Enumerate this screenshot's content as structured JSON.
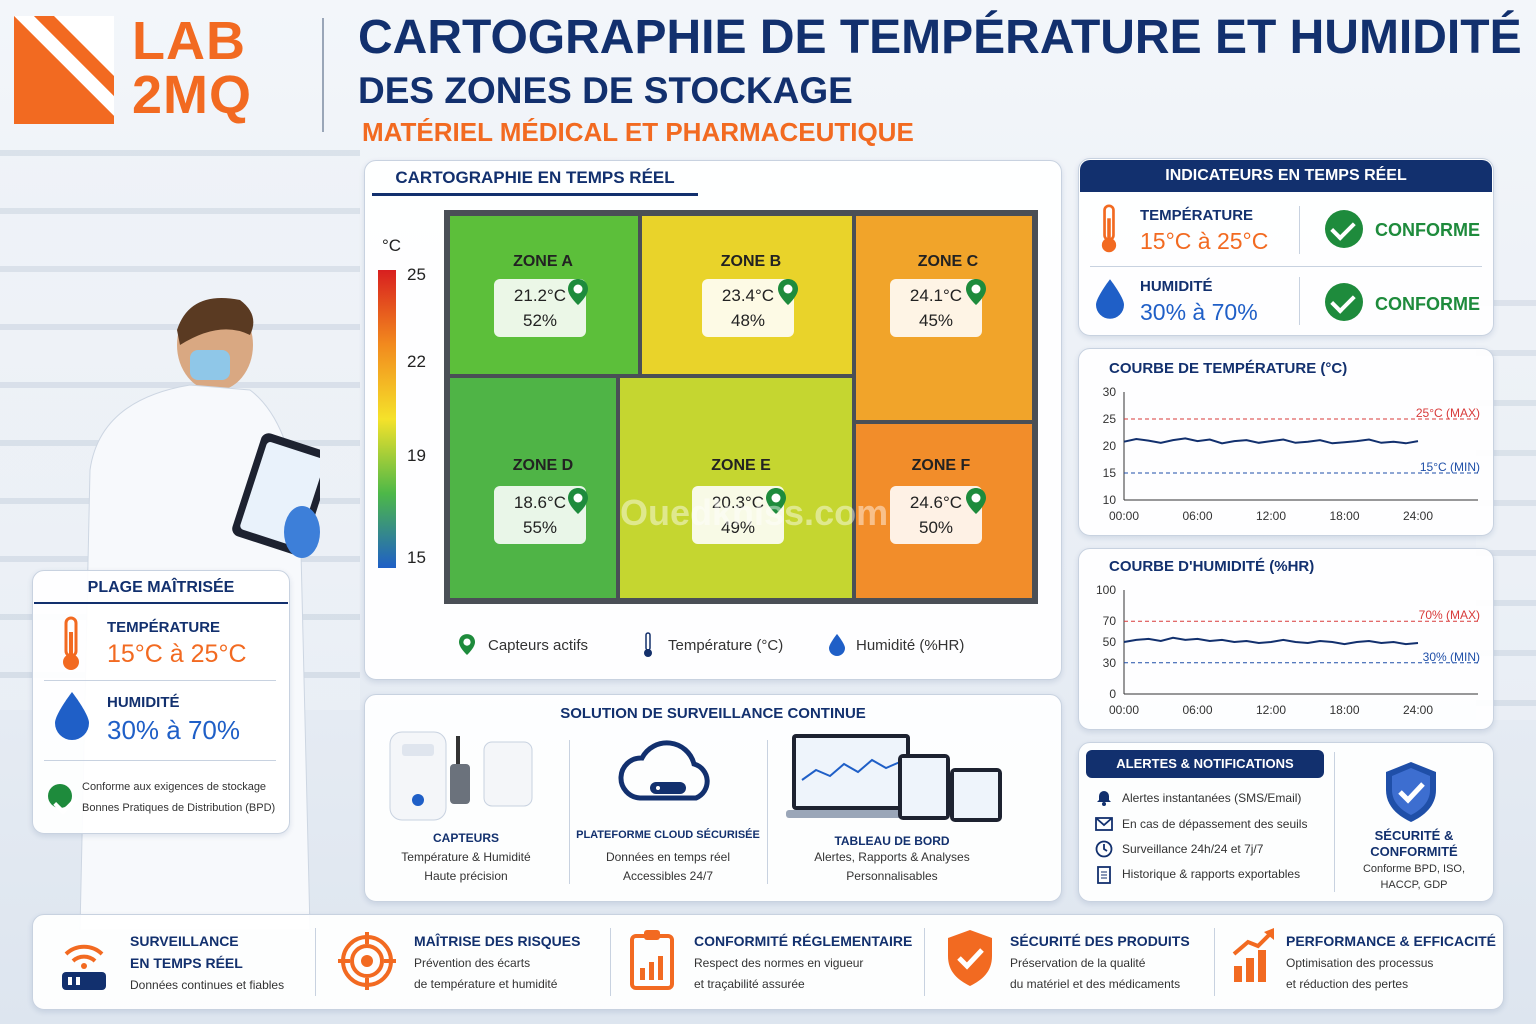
{
  "brand": {
    "logo_text_line1": "LAB",
    "logo_text_line2": "2MQ",
    "color": "#f26a21"
  },
  "header": {
    "title": "CARTOGRAPHIE DE TEMPÉRATURE ET HUMIDITÉ",
    "subtitle": "DES ZONES DE STOCKAGE",
    "tagline": "MATÉRIEL MÉDICAL ET PHARMACEUTIQUE"
  },
  "map_panel": {
    "title": "CARTOGRAPHIE EN TEMPS RÉEL",
    "scale_unit": "°C",
    "scale_ticks": [
      "25",
      "22",
      "19",
      "15"
    ],
    "zones": [
      {
        "name": "ZONE A",
        "temp": "21.2°C",
        "hum": "52%",
        "color": "#5cbf3a"
      },
      {
        "name": "ZONE B",
        "temp": "23.4°C",
        "hum": "48%",
        "color": "#e9d32a"
      },
      {
        "name": "ZONE C",
        "temp": "24.1°C",
        "hum": "45%",
        "color": "#f1a42a"
      },
      {
        "name": "ZONE D",
        "temp": "18.6°C",
        "hum": "55%",
        "color": "#4fb446"
      },
      {
        "name": "ZONE E",
        "temp": "20.3°C",
        "hum": "49%",
        "color": "#c5d630"
      },
      {
        "name": "ZONE F",
        "temp": "24.6°C",
        "hum": "50%",
        "color": "#f28d2a"
      }
    ],
    "legend": {
      "sensors": "Capteurs actifs",
      "temperature": "Température (°C)",
      "humidity": "Humidité (%HR)"
    }
  },
  "plage": {
    "title": "PLAGE MAÎTRISÉE",
    "temp_label": "TEMPÉRATURE",
    "temp_value": "15°C à 25°C",
    "hum_label": "HUMIDITÉ",
    "hum_value": "30% à 70%",
    "note_line1": "Conforme aux exigences de stockage",
    "note_line2": "Bonnes Pratiques de Distribution (BPD)"
  },
  "indicators": {
    "title": "INDICATEURS EN TEMPS RÉEL",
    "temp_label": "TEMPÉRATURE",
    "temp_value": "15°C à 25°C",
    "hum_label": "HUMIDITÉ",
    "hum_value": "30% à 70%",
    "status": "CONFORME"
  },
  "chart_data": [
    {
      "type": "line",
      "title": "COURBE DE TEMPÉRATURE (°C)",
      "x_ticks": [
        "00:00",
        "06:00",
        "12:00",
        "18:00",
        "24:00"
      ],
      "y_ticks": [
        "30",
        "25",
        "20",
        "15",
        "10"
      ],
      "ylim": [
        10,
        30
      ],
      "x": [
        0,
        1,
        2,
        3,
        4,
        5,
        6,
        7,
        8,
        9,
        10,
        11,
        12,
        13,
        14,
        15,
        16,
        17,
        18,
        19,
        20,
        21,
        22,
        23,
        24
      ],
      "values": [
        20.8,
        21.3,
        21.0,
        20.6,
        21.1,
        21.4,
        20.9,
        21.2,
        20.5,
        20.9,
        21.1,
        20.6,
        20.9,
        21.2,
        20.6,
        20.8,
        21.1,
        20.5,
        20.7,
        20.9,
        21.2,
        20.6,
        20.8,
        20.5,
        20.9
      ],
      "thresholds": [
        {
          "value": 25,
          "label": "25°C (MAX)",
          "color": "#d83a3a"
        },
        {
          "value": 15,
          "label": "15°C (MIN)",
          "color": "#1f4fa8"
        }
      ]
    },
    {
      "type": "line",
      "title": "COURBE D'HUMIDITÉ (%HR)",
      "x_ticks": [
        "00:00",
        "06:00",
        "12:00",
        "18:00",
        "24:00"
      ],
      "y_ticks": [
        "100",
        "70",
        "50",
        "30",
        "0"
      ],
      "ylim": [
        0,
        100
      ],
      "x": [
        0,
        1,
        2,
        3,
        4,
        5,
        6,
        7,
        8,
        9,
        10,
        11,
        12,
        13,
        14,
        15,
        16,
        17,
        18,
        19,
        20,
        21,
        22,
        23,
        24
      ],
      "values": [
        50,
        52,
        53,
        51,
        54,
        52,
        53,
        51,
        52,
        50,
        51,
        49,
        50,
        52,
        50,
        49,
        51,
        50,
        48,
        50,
        51,
        49,
        50,
        48,
        49
      ],
      "thresholds": [
        {
          "value": 70,
          "label": "70% (MAX)",
          "color": "#d83a3a"
        },
        {
          "value": 30,
          "label": "30% (MIN)",
          "color": "#1f4fa8"
        }
      ]
    }
  ],
  "surveillance": {
    "title": "SOLUTION DE SURVEILLANCE CONTINUE",
    "cols": [
      {
        "title": "CAPTEURS",
        "line1": "Température & Humidité",
        "line2": "Haute précision"
      },
      {
        "title": "PLATEFORME CLOUD SÉCURISÉE",
        "line1": "Données en temps réel",
        "line2": "Accessibles 24/7"
      },
      {
        "title": "TABLEAU DE BORD",
        "line1": "Alertes, Rapports & Analyses",
        "line2": "Personnalisables"
      }
    ]
  },
  "alerts": {
    "title": "ALERTES & NOTIFICATIONS",
    "items": [
      {
        "icon": "bell-icon",
        "text": "Alertes instantanées (SMS/Email)"
      },
      {
        "icon": "mail-icon",
        "text": "En cas de dépassement des seuils"
      },
      {
        "icon": "clock-icon",
        "text": "Surveillance 24h/24 et 7j/7"
      },
      {
        "icon": "document-icon",
        "text": "Historique & rapports exportables"
      }
    ],
    "security_title_1": "SÉCURITÉ &",
    "security_title_2": "CONFORMITÉ",
    "security_text_1": "Conforme BPD, ISO,",
    "security_text_2": "HACCP, GDP"
  },
  "benefits": [
    {
      "icon": "wifi-sensor-icon",
      "title1": "SURVEILLANCE",
      "title2": "EN TEMPS RÉEL",
      "line1": "Données continues et fiables",
      "line2": ""
    },
    {
      "icon": "target-icon",
      "title1": "MAÎTRISE DES RISQUES",
      "title2": "",
      "line1": "Prévention des écarts",
      "line2": "de température et humidité"
    },
    {
      "icon": "clipboard-chart-icon",
      "title1": "CONFORMITÉ RÉGLEMENTAIRE",
      "title2": "",
      "line1": "Respect des normes en vigueur",
      "line2": "et traçabilité assurée"
    },
    {
      "icon": "shield-check-icon",
      "title1": "SÉCURITÉ DES PRODUITS",
      "title2": "",
      "line1": "Préservation de la qualité",
      "line2": "du matériel et des médicaments"
    },
    {
      "icon": "growth-chart-icon",
      "title1": "PERFORMANCE & EFFICACITÉ",
      "title2": "",
      "line1": "Optimisation des processus",
      "line2": "et réduction des pertes"
    }
  ],
  "watermark": "Ouedkniss.com",
  "colors": {
    "navy": "#12306e",
    "orange": "#f26a21",
    "green": "#1e8b3c",
    "blue": "#1f5fc7"
  }
}
